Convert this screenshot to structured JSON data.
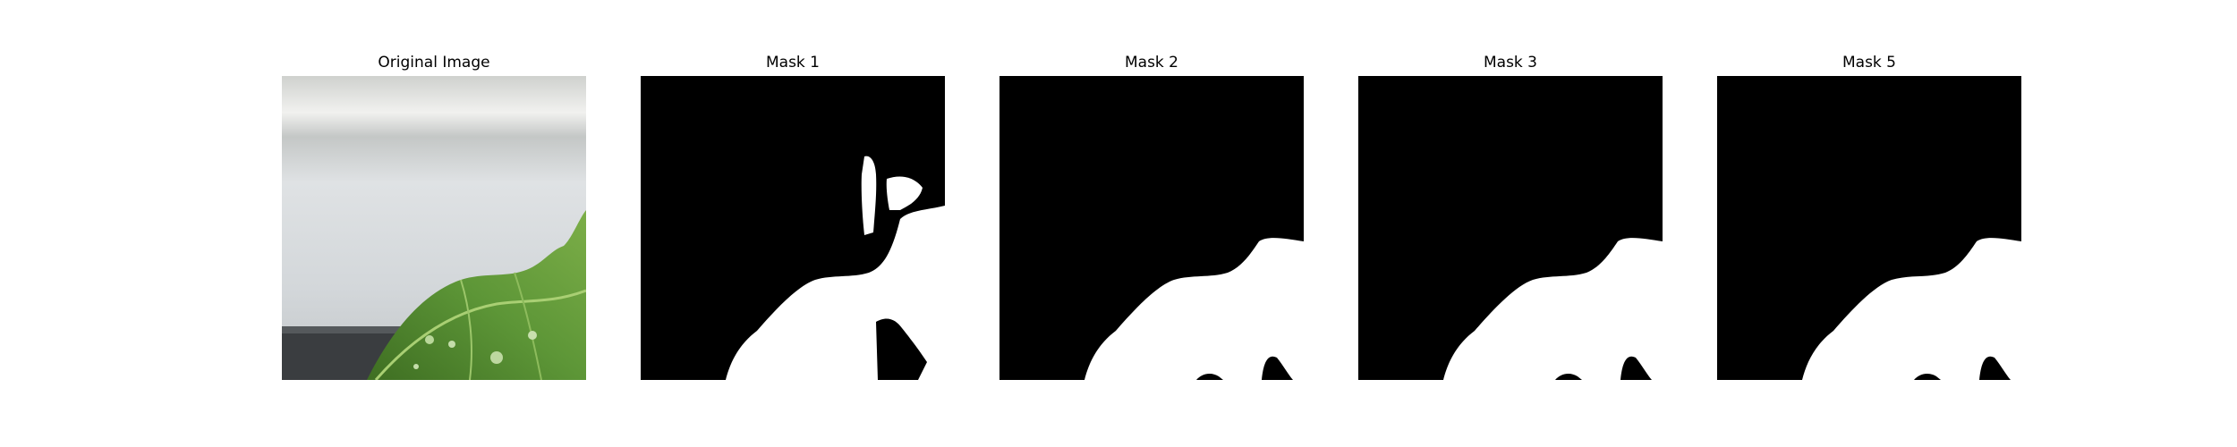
{
  "figure": {
    "panels": [
      {
        "title": "Original Image",
        "kind": "photo"
      },
      {
        "title": "Mask 1",
        "kind": "mask"
      },
      {
        "title": "Mask 2",
        "kind": "mask"
      },
      {
        "title": "Mask 3",
        "kind": "mask"
      },
      {
        "title": "Mask 5",
        "kind": "mask"
      }
    ]
  },
  "colors": {
    "mask_background": "#000000",
    "mask_foreground": "#ffffff",
    "leaf_dark": "#2f5a1c",
    "leaf_mid": "#4f8a2f",
    "leaf_light": "#7fb44d",
    "wall": "#d6dadc",
    "shelf": "#eeeeee"
  }
}
